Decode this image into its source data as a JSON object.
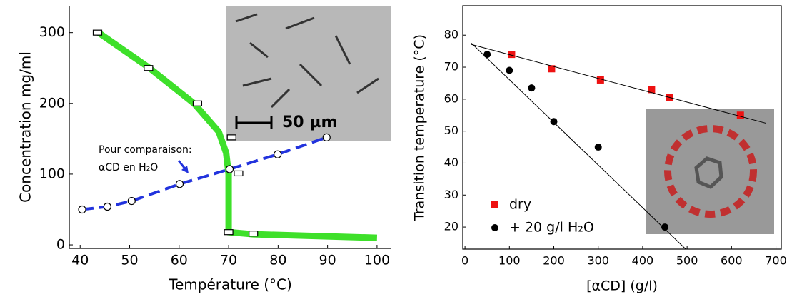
{
  "chart_data": [
    {
      "type": "line",
      "x_label": "Température (°C)",
      "y_label": "Concentration mg/ml",
      "xlim": [
        37.8,
        102.9
      ],
      "ylim": [
        -5,
        338
      ],
      "xticks": [
        40,
        50,
        60,
        70,
        80,
        90,
        100
      ],
      "yticks": [
        0,
        100,
        200,
        300
      ],
      "frame": "axes",
      "series": [
        {
          "color": "#3ee02a",
          "style": "line",
          "width": 9,
          "x": [
            43.7,
            54,
            63,
            68,
            69.5,
            70,
            70,
            70,
            75,
            100
          ],
          "values": [
            300,
            250,
            200,
            160,
            130,
            100,
            50,
            18,
            15,
            10
          ]
        },
        {
          "color": "#2233dd",
          "style": "dashed",
          "marker": "open-circle",
          "width": 4,
          "x": [
            40.4,
            45.5,
            50.4,
            60.1,
            70.2,
            79.9,
            89.8
          ],
          "values": [
            50,
            54,
            62,
            86,
            107,
            128,
            152
          ]
        },
        {
          "color": "#000000",
          "marker": "open-square",
          "x": [
            43.5,
            53.8,
            63.7,
            70.6,
            72,
            70,
            75
          ],
          "values": [
            300,
            250,
            200,
            152,
            101,
            18,
            16
          ]
        }
      ],
      "annotations": [
        "Pour comparaison:",
        "αCD en H₂O",
        "50 µm"
      ]
    },
    {
      "type": "scatter",
      "x_label": "[αCD] (g/l)",
      "y_label": "Transition temperature (°C)",
      "xlim": [
        -5,
        712
      ],
      "ylim": [
        13.1,
        89.2
      ],
      "xticks": [
        0,
        100,
        200,
        300,
        400,
        500,
        600,
        700
      ],
      "yticks": [
        20,
        30,
        40,
        50,
        60,
        70,
        80
      ],
      "frame": "full",
      "legend": "lower left",
      "series": [
        {
          "name": "dry",
          "color": "#ee1111",
          "marker": "filled-square",
          "x": [
            105,
            195,
            305,
            420,
            460,
            620
          ],
          "values": [
            74,
            69.5,
            66,
            63,
            60.5,
            55
          ]
        },
        {
          "name": "+ 20 g/l H₂O",
          "color": "#000000",
          "marker": "filled-circle",
          "x": [
            50,
            100,
            150,
            200,
            300,
            450
          ],
          "values": [
            74,
            69,
            63.5,
            53,
            45,
            20
          ]
        },
        {
          "color": "#000000",
          "style": "line",
          "width": 1,
          "x": [
            14.5,
            677
          ],
          "values": [
            77.1,
            52.5
          ]
        },
        {
          "color": "#000000",
          "style": "line",
          "width": 1,
          "x": [
            14.5,
            497
          ],
          "values": [
            77.5,
            13.1
          ]
        }
      ]
    }
  ]
}
